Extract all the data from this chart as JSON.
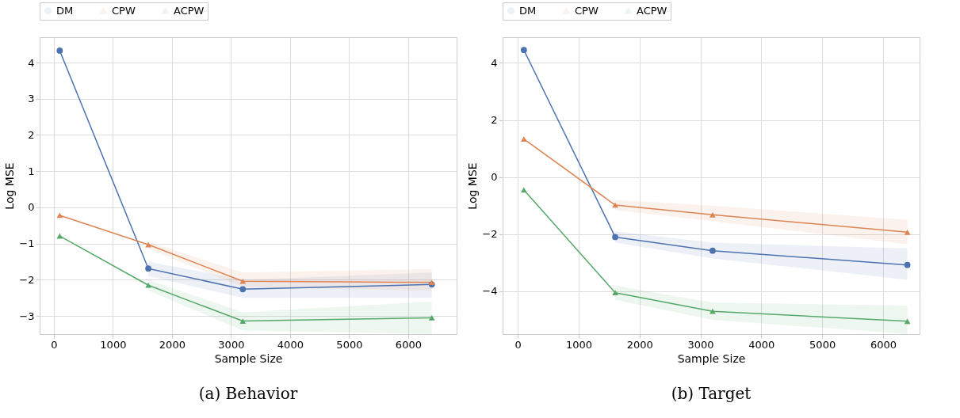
{
  "chart_data": [
    {
      "type": "line",
      "title": "(a) Behavior",
      "xlabel": "Sample Size",
      "ylabel": "Log MSE",
      "x": [
        100,
        1600,
        3200,
        6400
      ],
      "xlim": [
        -240,
        6820
      ],
      "xticks": [
        0,
        1000,
        2000,
        3000,
        4000,
        5000,
        6000
      ],
      "ylim": [
        -3.5,
        4.7
      ],
      "yticks": [
        -3,
        -2,
        -1,
        0,
        1,
        2,
        3,
        4
      ],
      "grid": true,
      "legend": "top",
      "series": [
        {
          "name": "DM",
          "color": "#4c72b0",
          "marker": "circle",
          "values": [
            4.33,
            -1.69,
            -2.26,
            -2.13
          ],
          "lower": [
            null,
            -1.9,
            -2.5,
            -2.5
          ],
          "upper": [
            null,
            -1.5,
            -2.0,
            -1.8
          ]
        },
        {
          "name": "CPW",
          "color": "#dd8452",
          "marker": "triangle",
          "values": [
            -0.22,
            -1.03,
            -2.04,
            -2.07
          ],
          "lower": [
            null,
            -1.15,
            -2.2,
            -2.3
          ],
          "upper": [
            null,
            -0.95,
            -1.8,
            -1.7
          ]
        },
        {
          "name": "ACPW",
          "color": "#55a868",
          "marker": "triangle",
          "values": [
            -0.79,
            -2.15,
            -3.14,
            -3.05
          ],
          "lower": [
            null,
            -2.3,
            -3.4,
            -3.5
          ],
          "upper": [
            null,
            -2.0,
            -2.9,
            -2.6
          ]
        }
      ]
    },
    {
      "type": "line",
      "title": "(b) Target",
      "xlabel": "Sample Size",
      "ylabel": "Log MSE",
      "x": [
        100,
        1600,
        3200,
        6400
      ],
      "xlim": [
        -250,
        6600
      ],
      "xticks": [
        0,
        1000,
        2000,
        3000,
        4000,
        5000,
        6000
      ],
      "ylim": [
        -5.5,
        4.9
      ],
      "yticks": [
        -4,
        -2,
        0,
        2,
        4
      ],
      "grid": true,
      "legend": "top",
      "series": [
        {
          "name": "DM",
          "color": "#4c72b0",
          "marker": "circle",
          "values": [
            4.45,
            -2.1,
            -2.58,
            -3.08
          ],
          "lower": [
            null,
            -2.3,
            -2.85,
            -3.6
          ],
          "upper": [
            null,
            -1.9,
            -2.3,
            -2.5
          ]
        },
        {
          "name": "CPW",
          "color": "#dd8452",
          "marker": "triangle",
          "values": [
            1.33,
            -0.98,
            -1.32,
            -1.93
          ],
          "lower": [
            null,
            -1.15,
            -1.55,
            -2.35
          ],
          "upper": [
            null,
            -0.8,
            -1.0,
            -1.5
          ]
        },
        {
          "name": "ACPW",
          "color": "#55a868",
          "marker": "triangle",
          "values": [
            -0.45,
            -4.05,
            -4.7,
            -5.05
          ],
          "lower": [
            null,
            -4.3,
            -5.0,
            -5.5
          ],
          "upper": [
            null,
            -3.8,
            -4.4,
            -4.5
          ]
        }
      ]
    }
  ]
}
